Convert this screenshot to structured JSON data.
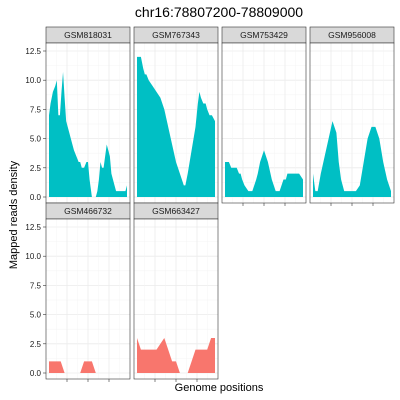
{
  "chart_data": {
    "type": "area",
    "title": "chr16:78807200-78809000",
    "xlabel": "Genome positions",
    "ylabel": "Mapped reads density",
    "ylim": [
      0,
      12.5
    ],
    "yticks": [
      "0.0",
      "2.5",
      "5.0",
      "7.5",
      "10.0",
      "12.5"
    ],
    "xlim": [
      0,
      1
    ],
    "grid": true,
    "legend": "none",
    "colors": {
      "group_a": "#00BFC4",
      "group_b": "#F8766D"
    },
    "panels": [
      {
        "name": "GSM818031",
        "group": "group_a",
        "x": [
          0.0,
          0.02,
          0.05,
          0.08,
          0.1,
          0.12,
          0.14,
          0.16,
          0.18,
          0.2,
          0.22,
          0.24,
          0.26,
          0.28,
          0.3,
          0.32,
          0.35,
          0.38,
          0.4,
          0.42,
          0.45,
          0.48,
          0.5,
          0.52,
          0.55,
          0.6,
          0.62,
          0.64,
          0.66,
          0.68,
          0.7,
          0.72,
          0.74,
          0.76,
          0.78,
          0.8,
          0.82,
          0.84,
          0.86,
          0.88,
          0.9,
          0.92,
          0.94,
          0.96,
          0.98,
          1.0
        ],
        "values": [
          7.0,
          8.0,
          9.0,
          9.5,
          10.0,
          7.0,
          7.0,
          9.0,
          10.7,
          8.5,
          6.5,
          6.0,
          5.5,
          5.0,
          4.5,
          4.0,
          3.5,
          3.0,
          3.0,
          2.5,
          2.5,
          3.0,
          3.0,
          1.5,
          0.0,
          0.0,
          0.5,
          1.5,
          3.0,
          2.5,
          2.5,
          3.5,
          4.5,
          4.0,
          3.5,
          2.0,
          1.5,
          1.0,
          0.5,
          0.5,
          0.5,
          0.5,
          0.5,
          0.5,
          0.5,
          1.0
        ]
      },
      {
        "name": "GSM767343",
        "group": "group_a",
        "x": [
          0.0,
          0.05,
          0.08,
          0.1,
          0.12,
          0.15,
          0.2,
          0.25,
          0.3,
          0.35,
          0.4,
          0.45,
          0.5,
          0.55,
          0.6,
          0.62,
          0.65,
          0.7,
          0.75,
          0.78,
          0.8,
          0.82,
          0.85,
          0.88,
          0.9,
          0.93,
          0.96,
          1.0
        ],
        "values": [
          12.0,
          12.0,
          11.0,
          10.5,
          10.5,
          10.0,
          9.5,
          9.0,
          8.5,
          7.5,
          6.0,
          4.5,
          3.0,
          2.0,
          1.0,
          1.0,
          2.0,
          4.0,
          6.0,
          8.0,
          9.0,
          8.5,
          8.0,
          8.0,
          7.5,
          7.0,
          7.0,
          6.5
        ]
      },
      {
        "name": "GSM753429",
        "group": "group_a",
        "x": [
          0.0,
          0.05,
          0.08,
          0.1,
          0.12,
          0.15,
          0.18,
          0.2,
          0.22,
          0.25,
          0.3,
          0.35,
          0.4,
          0.42,
          0.45,
          0.5,
          0.55,
          0.6,
          0.65,
          0.7,
          0.75,
          0.78,
          0.8,
          0.85,
          0.9,
          0.95,
          1.0
        ],
        "values": [
          3.0,
          3.0,
          2.5,
          2.5,
          2.5,
          2.5,
          2.0,
          2.0,
          1.5,
          1.0,
          0.5,
          0.5,
          1.5,
          2.0,
          3.0,
          4.0,
          3.0,
          1.5,
          0.5,
          0.5,
          1.5,
          1.5,
          2.0,
          2.0,
          2.0,
          2.0,
          1.5
        ]
      },
      {
        "name": "GSM956008",
        "group": "group_a",
        "x": [
          0.0,
          0.03,
          0.06,
          0.1,
          0.15,
          0.2,
          0.25,
          0.3,
          0.33,
          0.36,
          0.4,
          0.45,
          0.5,
          0.55,
          0.6,
          0.65,
          0.7,
          0.75,
          0.8,
          0.85,
          0.9,
          0.95,
          1.0
        ],
        "values": [
          2.0,
          0.5,
          0.5,
          2.0,
          3.5,
          5.0,
          6.5,
          5.5,
          3.0,
          1.5,
          0.5,
          0.5,
          0.5,
          0.5,
          1.0,
          3.0,
          5.0,
          6.0,
          6.0,
          5.0,
          3.0,
          1.5,
          0.5
        ]
      },
      {
        "name": "GSM466732",
        "group": "group_b",
        "x": [
          0.0,
          0.05,
          0.1,
          0.15,
          0.2,
          0.25,
          0.3,
          0.35,
          0.4,
          0.45,
          0.5,
          0.55,
          0.6,
          0.65,
          0.7,
          0.75,
          0.8,
          0.85,
          0.9,
          0.95,
          1.0
        ],
        "values": [
          1.0,
          1.0,
          1.0,
          1.0,
          0.0,
          0.0,
          0.0,
          0.0,
          0.0,
          1.0,
          1.0,
          1.0,
          0.0,
          0.0,
          0.0,
          0.0,
          0.0,
          0.0,
          0.0,
          0.0,
          0.0
        ]
      },
      {
        "name": "GSM663427",
        "group": "group_b",
        "x": [
          0.0,
          0.05,
          0.1,
          0.15,
          0.2,
          0.25,
          0.3,
          0.35,
          0.4,
          0.45,
          0.5,
          0.55,
          0.6,
          0.65,
          0.7,
          0.75,
          0.8,
          0.85,
          0.9,
          0.95,
          1.0
        ],
        "values": [
          3.0,
          2.0,
          2.0,
          2.0,
          2.0,
          2.0,
          2.5,
          3.0,
          2.0,
          1.0,
          1.0,
          0.0,
          0.0,
          0.0,
          1.0,
          2.0,
          2.0,
          2.0,
          2.0,
          3.0,
          3.0
        ]
      }
    ]
  }
}
